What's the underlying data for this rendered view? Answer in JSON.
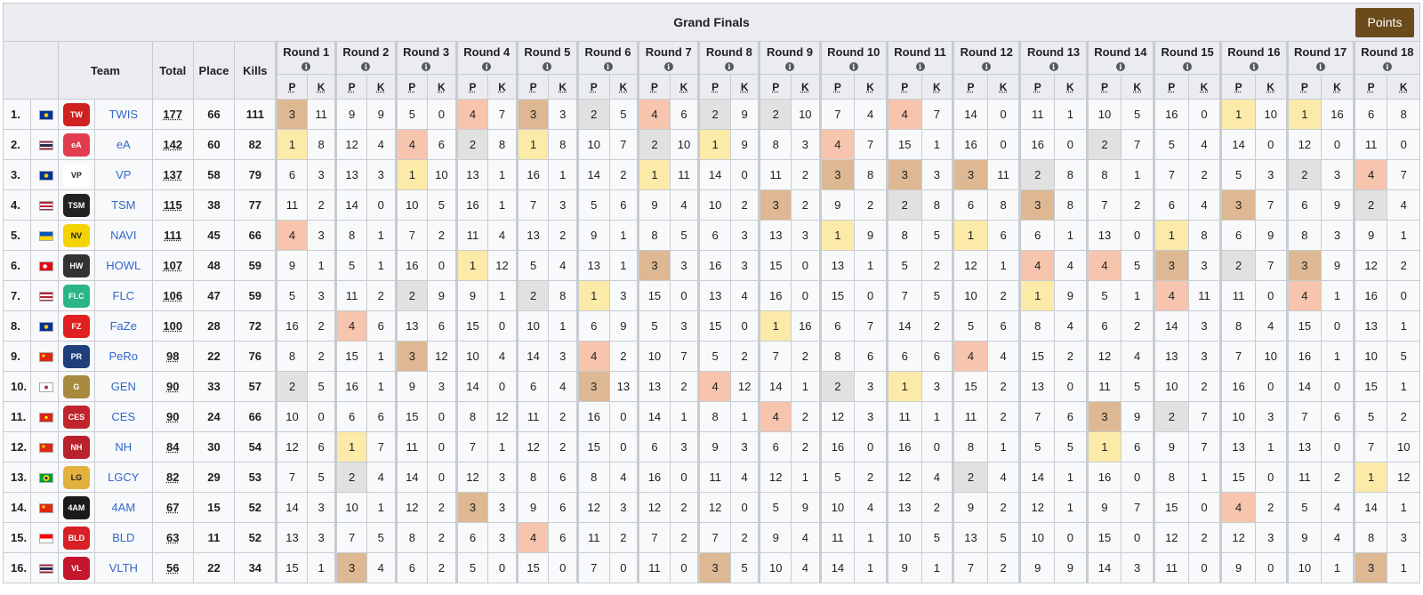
{
  "title": "Grand Finals",
  "points_button": "Points",
  "headers": {
    "team": "Team",
    "total": "Total",
    "place": "Place",
    "kills": "Kills",
    "p": "P",
    "k": "K"
  },
  "info_icon": "i",
  "rounds": [
    "Round 1",
    "Round 2",
    "Round 3",
    "Round 4",
    "Round 5",
    "Round 6",
    "Round 7",
    "Round 8",
    "Round 9",
    "Round 10",
    "Round 11",
    "Round 12",
    "Round 13",
    "Round 14",
    "Round 15",
    "Round 16",
    "Round 17",
    "Round 18"
  ],
  "colors": {
    "place1": "#fbeaa8",
    "place2": "#e1e1e1",
    "place3": "#ddb892",
    "place4": "#f7c4ad",
    "button": "#6b4a1c",
    "link": "#3366cc"
  },
  "teams": [
    {
      "rank": "1.",
      "flag": "eu",
      "logo": "twis-logo",
      "name": "TWIS",
      "total": "177",
      "place": "66",
      "kills": "111",
      "rounds": [
        [
          3,
          11
        ],
        [
          9,
          9
        ],
        [
          5,
          0
        ],
        [
          4,
          7
        ],
        [
          3,
          3
        ],
        [
          2,
          5
        ],
        [
          4,
          6
        ],
        [
          2,
          9
        ],
        [
          2,
          10
        ],
        [
          7,
          4
        ],
        [
          4,
          7
        ],
        [
          14,
          0
        ],
        [
          11,
          1
        ],
        [
          10,
          5
        ],
        [
          16,
          0
        ],
        [
          1,
          10
        ],
        [
          1,
          16
        ],
        [
          6,
          8
        ]
      ]
    },
    {
      "rank": "2.",
      "flag": "th",
      "logo": "ea-logo",
      "name": "eA",
      "total": "142",
      "place": "60",
      "kills": "82",
      "rounds": [
        [
          1,
          8
        ],
        [
          12,
          4
        ],
        [
          4,
          6
        ],
        [
          2,
          8
        ],
        [
          1,
          8
        ],
        [
          10,
          7
        ],
        [
          2,
          10
        ],
        [
          1,
          9
        ],
        [
          8,
          3
        ],
        [
          4,
          7
        ],
        [
          15,
          1
        ],
        [
          16,
          0
        ],
        [
          16,
          0
        ],
        [
          2,
          7
        ],
        [
          5,
          4
        ],
        [
          14,
          0
        ],
        [
          12,
          0
        ],
        [
          11,
          0
        ]
      ]
    },
    {
      "rank": "3.",
      "flag": "eu",
      "logo": "vp-logo",
      "name": "VP",
      "total": "137",
      "place": "58",
      "kills": "79",
      "rounds": [
        [
          6,
          3
        ],
        [
          13,
          3
        ],
        [
          1,
          10
        ],
        [
          13,
          1
        ],
        [
          16,
          1
        ],
        [
          14,
          2
        ],
        [
          1,
          11
        ],
        [
          14,
          0
        ],
        [
          11,
          2
        ],
        [
          3,
          8
        ],
        [
          3,
          3
        ],
        [
          3,
          11
        ],
        [
          2,
          8
        ],
        [
          8,
          1
        ],
        [
          7,
          2
        ],
        [
          5,
          3
        ],
        [
          2,
          3
        ],
        [
          4,
          7
        ]
      ]
    },
    {
      "rank": "4.",
      "flag": "us",
      "logo": "tsm-logo",
      "name": "TSM",
      "total": "115",
      "place": "38",
      "kills": "77",
      "rounds": [
        [
          11,
          2
        ],
        [
          14,
          0
        ],
        [
          10,
          5
        ],
        [
          16,
          1
        ],
        [
          7,
          3
        ],
        [
          5,
          6
        ],
        [
          9,
          4
        ],
        [
          10,
          2
        ],
        [
          3,
          2
        ],
        [
          9,
          2
        ],
        [
          2,
          8
        ],
        [
          6,
          8
        ],
        [
          3,
          8
        ],
        [
          7,
          2
        ],
        [
          6,
          4
        ],
        [
          3,
          7
        ],
        [
          6,
          9
        ],
        [
          2,
          4
        ]
      ]
    },
    {
      "rank": "5.",
      "flag": "ua",
      "logo": "navi-logo",
      "name": "NAVI",
      "total": "111",
      "place": "45",
      "kills": "66",
      "rounds": [
        [
          4,
          3
        ],
        [
          8,
          1
        ],
        [
          7,
          2
        ],
        [
          11,
          4
        ],
        [
          13,
          2
        ],
        [
          9,
          1
        ],
        [
          8,
          5
        ],
        [
          6,
          3
        ],
        [
          13,
          3
        ],
        [
          1,
          9
        ],
        [
          8,
          5
        ],
        [
          1,
          6
        ],
        [
          6,
          1
        ],
        [
          13,
          0
        ],
        [
          1,
          8
        ],
        [
          6,
          9
        ],
        [
          8,
          3
        ],
        [
          9,
          1
        ]
      ]
    },
    {
      "rank": "6.",
      "flag": "tr",
      "logo": "howl-logo",
      "name": "HOWL",
      "total": "107",
      "place": "48",
      "kills": "59",
      "rounds": [
        [
          9,
          1
        ],
        [
          5,
          1
        ],
        [
          16,
          0
        ],
        [
          1,
          12
        ],
        [
          5,
          4
        ],
        [
          13,
          1
        ],
        [
          3,
          3
        ],
        [
          16,
          3
        ],
        [
          15,
          0
        ],
        [
          13,
          1
        ],
        [
          5,
          2
        ],
        [
          12,
          1
        ],
        [
          4,
          4
        ],
        [
          4,
          5
        ],
        [
          3,
          3
        ],
        [
          2,
          7
        ],
        [
          3,
          9
        ],
        [
          12,
          2
        ]
      ]
    },
    {
      "rank": "7.",
      "flag": "us",
      "logo": "flc-logo",
      "name": "FLC",
      "total": "106",
      "place": "47",
      "kills": "59",
      "rounds": [
        [
          5,
          3
        ],
        [
          11,
          2
        ],
        [
          2,
          9
        ],
        [
          9,
          1
        ],
        [
          2,
          8
        ],
        [
          1,
          3
        ],
        [
          15,
          0
        ],
        [
          13,
          4
        ],
        [
          16,
          0
        ],
        [
          15,
          0
        ],
        [
          7,
          5
        ],
        [
          10,
          2
        ],
        [
          1,
          9
        ],
        [
          5,
          1
        ],
        [
          4,
          11
        ],
        [
          11,
          0
        ],
        [
          4,
          1
        ],
        [
          16,
          0
        ]
      ]
    },
    {
      "rank": "8.",
      "flag": "eu",
      "logo": "faze-logo",
      "name": "FaZe",
      "total": "100",
      "place": "28",
      "kills": "72",
      "rounds": [
        [
          16,
          2
        ],
        [
          4,
          6
        ],
        [
          13,
          6
        ],
        [
          15,
          0
        ],
        [
          10,
          1
        ],
        [
          6,
          9
        ],
        [
          5,
          3
        ],
        [
          15,
          0
        ],
        [
          1,
          16
        ],
        [
          6,
          7
        ],
        [
          14,
          2
        ],
        [
          5,
          6
        ],
        [
          8,
          4
        ],
        [
          6,
          2
        ],
        [
          14,
          3
        ],
        [
          8,
          4
        ],
        [
          15,
          0
        ],
        [
          13,
          1
        ]
      ]
    },
    {
      "rank": "9.",
      "flag": "cn",
      "logo": "pero-logo",
      "name": "PeRo",
      "total": "98",
      "place": "22",
      "kills": "76",
      "rounds": [
        [
          8,
          2
        ],
        [
          15,
          1
        ],
        [
          3,
          12
        ],
        [
          10,
          4
        ],
        [
          14,
          3
        ],
        [
          4,
          2
        ],
        [
          10,
          7
        ],
        [
          5,
          2
        ],
        [
          7,
          2
        ],
        [
          8,
          6
        ],
        [
          6,
          6
        ],
        [
          4,
          4
        ],
        [
          15,
          2
        ],
        [
          12,
          4
        ],
        [
          13,
          3
        ],
        [
          7,
          10
        ],
        [
          16,
          1
        ],
        [
          10,
          5
        ]
      ]
    },
    {
      "rank": "10.",
      "flag": "kr",
      "logo": "gen-logo",
      "name": "GEN",
      "total": "90",
      "place": "33",
      "kills": "57",
      "rounds": [
        [
          2,
          5
        ],
        [
          16,
          1
        ],
        [
          9,
          3
        ],
        [
          14,
          0
        ],
        [
          6,
          4
        ],
        [
          3,
          13
        ],
        [
          13,
          2
        ],
        [
          4,
          12
        ],
        [
          14,
          1
        ],
        [
          2,
          3
        ],
        [
          1,
          3
        ],
        [
          15,
          2
        ],
        [
          13,
          0
        ],
        [
          11,
          5
        ],
        [
          10,
          2
        ],
        [
          16,
          0
        ],
        [
          14,
          0
        ],
        [
          15,
          1
        ]
      ]
    },
    {
      "rank": "11.",
      "flag": "vn",
      "logo": "ces-logo",
      "name": "CES",
      "total": "90",
      "place": "24",
      "kills": "66",
      "rounds": [
        [
          10,
          0
        ],
        [
          6,
          6
        ],
        [
          15,
          0
        ],
        [
          8,
          12
        ],
        [
          11,
          2
        ],
        [
          16,
          0
        ],
        [
          14,
          1
        ],
        [
          8,
          1
        ],
        [
          4,
          2
        ],
        [
          12,
          3
        ],
        [
          11,
          1
        ],
        [
          11,
          2
        ],
        [
          7,
          6
        ],
        [
          3,
          9
        ],
        [
          2,
          7
        ],
        [
          10,
          3
        ],
        [
          7,
          6
        ],
        [
          5,
          2
        ]
      ]
    },
    {
      "rank": "12.",
      "flag": "cn",
      "logo": "nh-logo",
      "name": "NH",
      "total": "84",
      "place": "30",
      "kills": "54",
      "rounds": [
        [
          12,
          6
        ],
        [
          1,
          7
        ],
        [
          11,
          0
        ],
        [
          7,
          1
        ],
        [
          12,
          2
        ],
        [
          15,
          0
        ],
        [
          6,
          3
        ],
        [
          9,
          3
        ],
        [
          6,
          2
        ],
        [
          16,
          0
        ],
        [
          16,
          0
        ],
        [
          8,
          1
        ],
        [
          5,
          5
        ],
        [
          1,
          6
        ],
        [
          9,
          7
        ],
        [
          13,
          1
        ],
        [
          13,
          0
        ],
        [
          7,
          10
        ]
      ]
    },
    {
      "rank": "13.",
      "flag": "br",
      "logo": "lgcy-logo",
      "name": "LGCY",
      "total": "82",
      "place": "29",
      "kills": "53",
      "rounds": [
        [
          7,
          5
        ],
        [
          2,
          4
        ],
        [
          14,
          0
        ],
        [
          12,
          3
        ],
        [
          8,
          6
        ],
        [
          8,
          4
        ],
        [
          16,
          0
        ],
        [
          11,
          4
        ],
        [
          12,
          1
        ],
        [
          5,
          2
        ],
        [
          12,
          4
        ],
        [
          2,
          4
        ],
        [
          14,
          1
        ],
        [
          16,
          0
        ],
        [
          8,
          1
        ],
        [
          15,
          0
        ],
        [
          11,
          2
        ],
        [
          1,
          12
        ]
      ]
    },
    {
      "rank": "14.",
      "flag": "cn",
      "logo": "4am-logo",
      "name": "4AM",
      "total": "67",
      "place": "15",
      "kills": "52",
      "rounds": [
        [
          14,
          3
        ],
        [
          10,
          1
        ],
        [
          12,
          2
        ],
        [
          3,
          3
        ],
        [
          9,
          6
        ],
        [
          12,
          3
        ],
        [
          12,
          2
        ],
        [
          12,
          0
        ],
        [
          5,
          9
        ],
        [
          10,
          4
        ],
        [
          13,
          2
        ],
        [
          9,
          2
        ],
        [
          12,
          1
        ],
        [
          9,
          7
        ],
        [
          15,
          0
        ],
        [
          4,
          2
        ],
        [
          5,
          4
        ],
        [
          14,
          1
        ]
      ]
    },
    {
      "rank": "15.",
      "flag": "id",
      "logo": "bld-logo",
      "name": "BLD",
      "total": "63",
      "place": "11",
      "kills": "52",
      "rounds": [
        [
          13,
          3
        ],
        [
          7,
          5
        ],
        [
          8,
          2
        ],
        [
          6,
          3
        ],
        [
          4,
          6
        ],
        [
          11,
          2
        ],
        [
          7,
          2
        ],
        [
          7,
          2
        ],
        [
          9,
          4
        ],
        [
          11,
          1
        ],
        [
          10,
          5
        ],
        [
          13,
          5
        ],
        [
          10,
          0
        ],
        [
          15,
          0
        ],
        [
          12,
          2
        ],
        [
          12,
          3
        ],
        [
          9,
          4
        ],
        [
          8,
          3
        ]
      ]
    },
    {
      "rank": "16.",
      "flag": "th",
      "logo": "vlth-logo",
      "name": "VLTH",
      "total": "56",
      "place": "22",
      "kills": "34",
      "rounds": [
        [
          15,
          1
        ],
        [
          3,
          4
        ],
        [
          6,
          2
        ],
        [
          5,
          0
        ],
        [
          15,
          0
        ],
        [
          7,
          0
        ],
        [
          11,
          0
        ],
        [
          3,
          5
        ],
        [
          10,
          4
        ],
        [
          14,
          1
        ],
        [
          9,
          1
        ],
        [
          7,
          2
        ],
        [
          9,
          9
        ],
        [
          14,
          3
        ],
        [
          11,
          0
        ],
        [
          9,
          0
        ],
        [
          10,
          1
        ],
        [
          3,
          1
        ]
      ]
    }
  ]
}
